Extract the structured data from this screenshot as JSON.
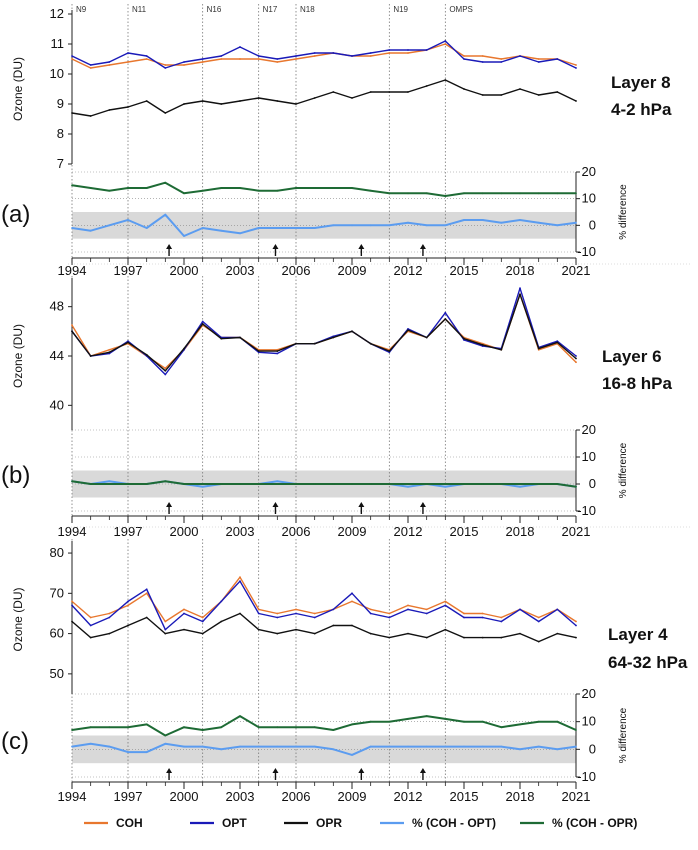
{
  "chart_data": [
    {
      "type": "line",
      "panel_letter": "(a)",
      "layer_label": "Layer 8",
      "pressure_label": "4-2 hPa",
      "ylabel": "Ozone (DU)",
      "y2label": "% difference",
      "ylim": [
        7,
        12
      ],
      "yticks": [
        7,
        8,
        9,
        10,
        11,
        12
      ],
      "y2lim": [
        -10,
        20
      ],
      "y2ticks": [
        -10,
        0,
        10,
        20
      ],
      "y2_band": [
        -5,
        5
      ],
      "xlim": [
        1994,
        2021
      ],
      "xticks": [
        1994,
        1997,
        2000,
        2003,
        2006,
        2009,
        2012,
        2015,
        2018,
        2021
      ],
      "satellite_transitions": [
        {
          "label": "N9",
          "x": 1994.0
        },
        {
          "label": "N11",
          "x": 1997.0
        },
        {
          "label": "N16",
          "x": 2001.0
        },
        {
          "label": "N17",
          "x": 2004.0
        },
        {
          "label": "N18",
          "x": 2006.0
        },
        {
          "label": "N19",
          "x": 2011.0
        },
        {
          "label": "OMPS",
          "x": 2014.0
        }
      ],
      "arrows": [
        1999.2,
        2004.9,
        2009.5,
        2012.8
      ],
      "x": [
        1994.0,
        1995.0,
        1996.0,
        1997.0,
        1998.0,
        1999.0,
        2000.0,
        2001.0,
        2002.0,
        2003.0,
        2004.0,
        2005.0,
        2006.0,
        2007.0,
        2008.0,
        2009.0,
        2010.0,
        2011.0,
        2012.0,
        2013.0,
        2014.0,
        2015.0,
        2016.0,
        2017.0,
        2018.0,
        2019.0,
        2020.0,
        2021.0
      ],
      "series": [
        {
          "name": "COH",
          "values": [
            10.5,
            10.2,
            10.3,
            10.4,
            10.5,
            10.3,
            10.3,
            10.4,
            10.5,
            10.5,
            10.5,
            10.4,
            10.5,
            10.6,
            10.7,
            10.6,
            10.6,
            10.7,
            10.7,
            10.8,
            11.0,
            10.6,
            10.6,
            10.5,
            10.6,
            10.5,
            10.5,
            10.3
          ]
        },
        {
          "name": "OPT",
          "values": [
            10.6,
            10.3,
            10.4,
            10.7,
            10.6,
            10.2,
            10.4,
            10.5,
            10.6,
            10.9,
            10.6,
            10.5,
            10.6,
            10.7,
            10.7,
            10.6,
            10.7,
            10.8,
            10.8,
            10.8,
            11.1,
            10.5,
            10.4,
            10.4,
            10.6,
            10.4,
            10.5,
            10.2
          ]
        },
        {
          "name": "OPR",
          "values": [
            8.7,
            8.6,
            8.8,
            8.9,
            9.1,
            8.7,
            9.0,
            9.1,
            9.0,
            9.1,
            9.2,
            9.1,
            9.0,
            9.2,
            9.4,
            9.2,
            9.4,
            9.4,
            9.4,
            9.6,
            9.8,
            9.5,
            9.3,
            9.3,
            9.5,
            9.3,
            9.4,
            9.1
          ]
        },
        {
          "name": "% (COH - OPT)",
          "values": [
            -1,
            -2,
            0,
            2,
            -1,
            4,
            -4,
            -1,
            -2,
            -3,
            -1,
            -1,
            -1,
            -1,
            0,
            0,
            0,
            0,
            1,
            0,
            0,
            2,
            2,
            1,
            2,
            1,
            0,
            1
          ]
        },
        {
          "name": "% (COH - OPR)",
          "values": [
            15,
            14,
            13,
            14,
            14,
            16,
            12,
            13,
            14,
            14,
            13,
            13,
            14,
            14,
            14,
            14,
            13,
            12,
            12,
            12,
            11,
            12,
            12,
            12,
            12,
            12,
            12,
            12
          ]
        }
      ]
    },
    {
      "type": "line",
      "panel_letter": "(b)",
      "layer_label": "Layer 6",
      "pressure_label": "16-8 hPa",
      "ylabel": "Ozone (DU)",
      "y2label": "% difference",
      "ylim": [
        38,
        50
      ],
      "yticks": [
        40,
        44,
        48
      ],
      "y2lim": [
        -10,
        20
      ],
      "y2ticks": [
        -10,
        0,
        10,
        20
      ],
      "y2_band": [
        -5,
        5
      ],
      "xlim": [
        1994,
        2021
      ],
      "xticks": [
        1994,
        1997,
        2000,
        2003,
        2006,
        2009,
        2012,
        2015,
        2018,
        2021
      ],
      "satellite_transitions": [
        {
          "label": "",
          "x": 1994.0
        },
        {
          "label": "",
          "x": 1997.0
        },
        {
          "label": "",
          "x": 2001.0
        },
        {
          "label": "",
          "x": 2004.0
        },
        {
          "label": "",
          "x": 2006.0
        },
        {
          "label": "",
          "x": 2011.0
        },
        {
          "label": "",
          "x": 2014.0
        }
      ],
      "arrows": [
        1999.2,
        2004.9,
        2009.5,
        2012.8
      ],
      "x": [
        1994.0,
        1995.0,
        1996.0,
        1997.0,
        1998.0,
        1999.0,
        2000.0,
        2001.0,
        2002.0,
        2003.0,
        2004.0,
        2005.0,
        2006.0,
        2007.0,
        2008.0,
        2009.0,
        2010.0,
        2011.0,
        2012.0,
        2013.0,
        2014.0,
        2015.0,
        2016.0,
        2017.0,
        2018.0,
        2019.0,
        2020.0,
        2021.0
      ],
      "series": [
        {
          "name": "COH",
          "values": [
            46.5,
            44.0,
            44.5,
            45.0,
            44.0,
            43.0,
            44.5,
            46.5,
            45.5,
            45.5,
            44.5,
            44.5,
            45.0,
            45.0,
            45.5,
            46.0,
            45.0,
            44.5,
            46.0,
            45.5,
            47.0,
            45.5,
            45.0,
            44.5,
            49.0,
            44.5,
            45.0,
            43.5
          ]
        },
        {
          "name": "OPT",
          "values": [
            46.0,
            44.0,
            44.2,
            45.2,
            44.0,
            42.5,
            44.5,
            46.8,
            45.5,
            45.5,
            44.3,
            44.2,
            45.0,
            45.0,
            45.6,
            46.0,
            45.0,
            44.3,
            46.2,
            45.5,
            47.5,
            45.3,
            44.8,
            44.6,
            49.5,
            44.7,
            45.2,
            44.0
          ]
        },
        {
          "name": "OPR",
          "values": [
            46.0,
            44.0,
            44.3,
            45.1,
            44.1,
            42.8,
            44.6,
            46.6,
            45.4,
            45.5,
            44.4,
            44.4,
            45.0,
            45.0,
            45.5,
            46.0,
            45.0,
            44.4,
            46.1,
            45.5,
            47.0,
            45.4,
            44.9,
            44.5,
            49.0,
            44.6,
            45.1,
            43.8
          ]
        },
        {
          "name": "% (COH - OPT)",
          "values": [
            1,
            0,
            1,
            0,
            0,
            1,
            0,
            -1,
            0,
            0,
            0,
            1,
            0,
            0,
            0,
            0,
            0,
            0,
            -1,
            0,
            -1,
            0,
            0,
            0,
            -1,
            0,
            0,
            -1
          ]
        },
        {
          "name": "% (COH - OPR)",
          "values": [
            1,
            0,
            0,
            0,
            0,
            1,
            0,
            0,
            0,
            0,
            0,
            0,
            0,
            0,
            0,
            0,
            0,
            0,
            0,
            0,
            0,
            0,
            0,
            0,
            0,
            0,
            0,
            -1
          ]
        }
      ]
    },
    {
      "type": "line",
      "panel_letter": "(c)",
      "layer_label": "Layer 4",
      "pressure_label": "64-32 hPa",
      "ylabel": "Ozone (DU)",
      "y2label": "% difference",
      "ylim": [
        45,
        82
      ],
      "yticks": [
        50,
        60,
        70,
        80
      ],
      "y2lim": [
        -10,
        20
      ],
      "y2ticks": [
        -10,
        0,
        10,
        20
      ],
      "y2_band": [
        -5,
        5
      ],
      "xlim": [
        1994,
        2021
      ],
      "xticks": [
        1994,
        1997,
        2000,
        2003,
        2006,
        2009,
        2012,
        2015,
        2018,
        2021
      ],
      "satellite_transitions": [
        {
          "label": "",
          "x": 1994.0
        },
        {
          "label": "",
          "x": 1997.0
        },
        {
          "label": "",
          "x": 2001.0
        },
        {
          "label": "",
          "x": 2004.0
        },
        {
          "label": "",
          "x": 2006.0
        },
        {
          "label": "",
          "x": 2011.0
        },
        {
          "label": "",
          "x": 2014.0
        }
      ],
      "arrows": [
        1999.2,
        2004.9,
        2009.5,
        2012.8
      ],
      "x": [
        1994.0,
        1995.0,
        1996.0,
        1997.0,
        1998.0,
        1999.0,
        2000.0,
        2001.0,
        2002.0,
        2003.0,
        2004.0,
        2005.0,
        2006.0,
        2007.0,
        2008.0,
        2009.0,
        2010.0,
        2011.0,
        2012.0,
        2013.0,
        2014.0,
        2015.0,
        2016.0,
        2017.0,
        2018.0,
        2019.0,
        2020.0,
        2021.0
      ],
      "series": [
        {
          "name": "COH",
          "values": [
            68,
            64,
            65,
            67,
            70,
            63,
            66,
            64,
            68,
            74,
            66,
            65,
            66,
            65,
            66,
            68,
            66,
            65,
            67,
            66,
            68,
            65,
            65,
            64,
            66,
            64,
            66,
            63
          ]
        },
        {
          "name": "OPT",
          "values": [
            67,
            62,
            64,
            68,
            71,
            61,
            65,
            63,
            68,
            73,
            65,
            64,
            65,
            64,
            66,
            70,
            65,
            64,
            66,
            65,
            67,
            64,
            64,
            63,
            66,
            63,
            66,
            62
          ]
        },
        {
          "name": "OPR",
          "values": [
            63,
            59,
            60,
            62,
            64,
            60,
            61,
            60,
            63,
            65,
            61,
            60,
            61,
            60,
            62,
            62,
            60,
            59,
            60,
            59,
            61,
            59,
            59,
            59,
            60,
            58,
            60,
            59
          ]
        },
        {
          "name": "% (COH - OPT)",
          "values": [
            1,
            2,
            1,
            -1,
            -1,
            2,
            1,
            1,
            0,
            1,
            1,
            1,
            1,
            1,
            0,
            -2,
            1,
            1,
            1,
            1,
            1,
            1,
            1,
            1,
            0,
            1,
            0,
            1
          ]
        },
        {
          "name": "% (COH - OPR)",
          "values": [
            7,
            8,
            8,
            8,
            9,
            5,
            8,
            7,
            8,
            12,
            8,
            8,
            8,
            8,
            7,
            9,
            10,
            10,
            11,
            12,
            11,
            10,
            10,
            8,
            9,
            10,
            10,
            7
          ]
        }
      ]
    }
  ],
  "colors": {
    "COH": "#e8772e",
    "OPT": "#1a1ab8",
    "OPR": "#111111",
    "% (COH - OPT)": "#5b9cf0",
    "% (COH - OPR)": "#1e6b35",
    "band": "#d9d9d9"
  },
  "legend": [
    "COH",
    "OPT",
    "OPR",
    "% (COH - OPT)",
    "% (COH - OPR)"
  ]
}
